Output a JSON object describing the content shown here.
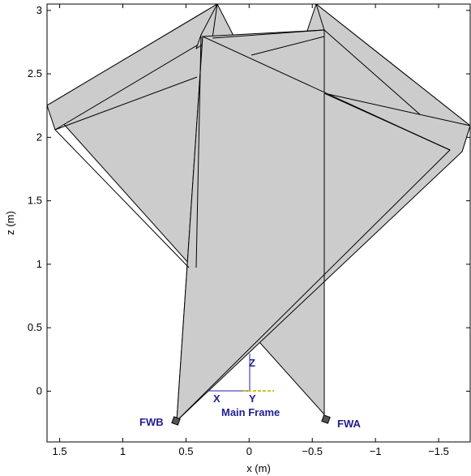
{
  "chart_data": {
    "type": "3d-projection",
    "xlabel": "x (m)",
    "ylabel": "z (m)",
    "xlim": [
      1.6,
      -1.75
    ],
    "ylim": [
      -0.4,
      3.05
    ],
    "x_ticks": [
      1.5,
      1,
      0.5,
      0,
      -0.5,
      -1,
      -1.5
    ],
    "x_tick_labels": [
      "1.5",
      "1",
      "0.5",
      "0",
      "−0.5",
      "−1",
      "−1.5"
    ],
    "y_ticks": [
      0,
      0.5,
      1,
      1.5,
      2,
      2.5,
      3
    ],
    "y_tick_labels": [
      "0",
      "0.5",
      "1",
      "1.5",
      "2",
      "2.5",
      "3"
    ],
    "annotations": {
      "fwb": "FWB",
      "fwa": "FWA",
      "main_frame": "Main Frame",
      "axis_x": "X",
      "axis_y": "Y",
      "axis_z": "Z"
    },
    "colors": {
      "panel_fill": "#cccccc",
      "label_color": "#1f1f8f",
      "frame_axis_color": "#2222aa",
      "frame_marker_color": "#d4c020"
    }
  }
}
